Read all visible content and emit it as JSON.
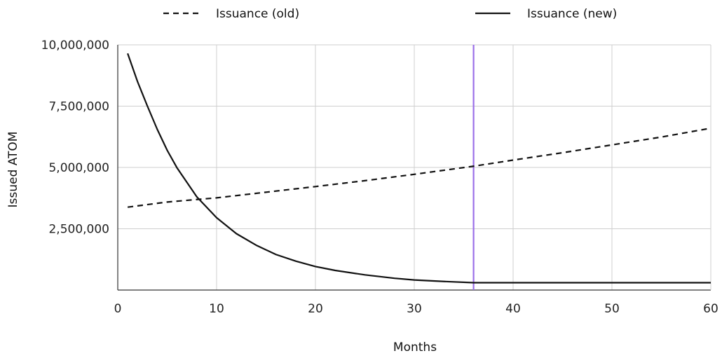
{
  "chart_data": {
    "type": "line",
    "xlabel": "Months",
    "ylabel": "Issued ATOM",
    "xlim": [
      0,
      60
    ],
    "ylim": [
      0,
      10000000
    ],
    "x_ticks": [
      0,
      10,
      20,
      30,
      40,
      50,
      60
    ],
    "x_tick_labels": [
      "0",
      "10",
      "20",
      "30",
      "40",
      "50",
      "60"
    ],
    "y_ticks": [
      2500000,
      5000000,
      7500000,
      10000000
    ],
    "y_tick_labels": [
      "2,500,000",
      "5,000,000",
      "7,500,000",
      "10,000,000"
    ],
    "grid": true,
    "legend_position": "top",
    "marker_line": {
      "x": 36,
      "color": "#9b6fe8"
    },
    "series": [
      {
        "name": "Issuance (old)",
        "style": "dashed",
        "color": "#111111",
        "x": [
          1,
          5,
          10,
          15,
          20,
          25,
          30,
          36,
          40,
          45,
          50,
          55,
          60
        ],
        "y": [
          3380000,
          3590000,
          3760000,
          3990000,
          4220000,
          4460000,
          4720000,
          5050000,
          5300000,
          5600000,
          5920000,
          6240000,
          6600000
        ]
      },
      {
        "name": "Issuance (new)",
        "style": "solid",
        "color": "#111111",
        "x": [
          1,
          2,
          3,
          4,
          5,
          6,
          8,
          10,
          12,
          14,
          16,
          18,
          20,
          22,
          25,
          28,
          30,
          33,
          36,
          40,
          45,
          50,
          55,
          60
        ],
        "y": [
          9650000,
          8500000,
          7500000,
          6550000,
          5700000,
          4980000,
          3800000,
          2950000,
          2300000,
          1830000,
          1450000,
          1180000,
          960000,
          800000,
          620000,
          480000,
          410000,
          350000,
          300000,
          300000,
          300000,
          300000,
          300000,
          300000
        ]
      }
    ]
  }
}
